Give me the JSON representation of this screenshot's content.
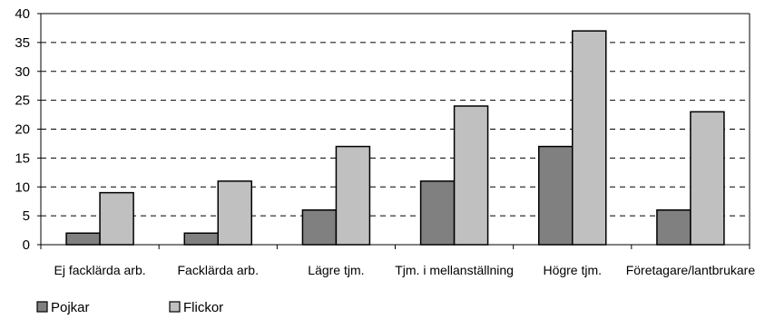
{
  "chart_data": {
    "type": "bar",
    "categories": [
      "Ej facklärda arb.",
      "Facklärda arb.",
      "Lägre tjm.",
      "Tjm. i mellanställning",
      "Högre tjm.",
      "Företagare/lantbrukare"
    ],
    "series": [
      {
        "name": "Pojkar",
        "values": [
          2,
          2,
          6,
          11,
          17,
          6
        ],
        "color": "#808080"
      },
      {
        "name": "Flickor",
        "values": [
          9,
          11,
          17,
          24,
          37,
          23
        ],
        "color": "#c0c0c0"
      }
    ],
    "ylim": [
      0,
      40
    ],
    "yticks": [
      0,
      5,
      10,
      15,
      20,
      25,
      30,
      35,
      40
    ],
    "grid": true,
    "legend_position": "bottom-left"
  }
}
